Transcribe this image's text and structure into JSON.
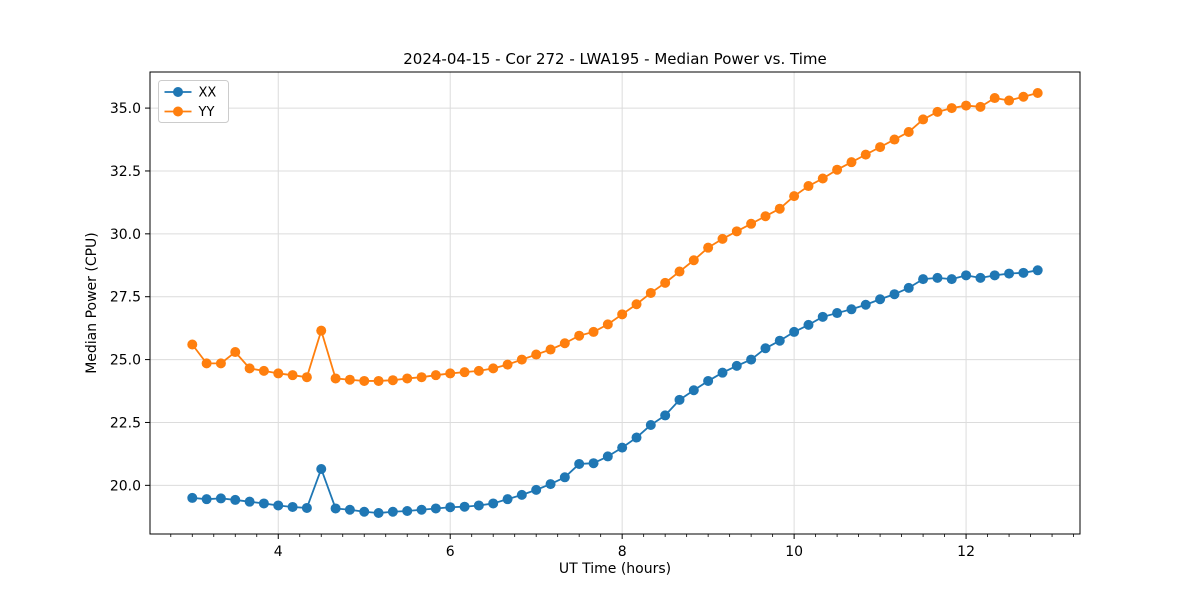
{
  "chart_data": {
    "type": "line",
    "title": "2024-04-15 - Cor 272 - LWA195 - Median Power vs. Time",
    "xlabel": "UT Time (hours)",
    "ylabel": "Median Power (CPU)",
    "xlim": [
      2.5083,
      13.325
    ],
    "ylim": [
      18.065,
      36.435
    ],
    "xticks": [
      4,
      6,
      8,
      10,
      12
    ],
    "xtick_labels": [
      "4",
      "6",
      "8",
      "10",
      "12"
    ],
    "yticks": [
      20.0,
      22.5,
      25.0,
      27.5,
      30.0,
      32.5,
      35.0
    ],
    "ytick_labels": [
      "20.0",
      "22.5",
      "25.0",
      "27.5",
      "30.0",
      "32.5",
      "35.0"
    ],
    "x_minor_step": 0.25,
    "grid": true,
    "legend_position": "upper left",
    "colors": {
      "xx_series": "#1f77b4",
      "yy_series": "#ff7f0e",
      "grid": "#dcdcdc",
      "spine": "#000000",
      "legend_border": "#cccccc"
    },
    "x": [
      3.0,
      3.167,
      3.333,
      3.5,
      3.667,
      3.833,
      4.0,
      4.167,
      4.333,
      4.5,
      4.667,
      4.833,
      5.0,
      5.167,
      5.333,
      5.5,
      5.667,
      5.833,
      6.0,
      6.167,
      6.333,
      6.5,
      6.667,
      6.833,
      7.0,
      7.167,
      7.333,
      7.5,
      7.667,
      7.833,
      8.0,
      8.167,
      8.333,
      8.5,
      8.667,
      8.833,
      9.0,
      9.167,
      9.333,
      9.5,
      9.667,
      9.833,
      10.0,
      10.167,
      10.333,
      10.5,
      10.667,
      10.833,
      11.0,
      11.167,
      11.333,
      11.5,
      11.667,
      11.833,
      12.0,
      12.167,
      12.333,
      12.5,
      12.667,
      12.833
    ],
    "series": [
      {
        "name": "XX",
        "color": "#1f77b4",
        "values": [
          19.5,
          19.45,
          19.48,
          19.42,
          19.35,
          19.28,
          19.2,
          19.14,
          19.1,
          20.65,
          19.08,
          19.03,
          18.95,
          18.9,
          18.95,
          18.98,
          19.03,
          19.08,
          19.13,
          19.15,
          19.2,
          19.28,
          19.45,
          19.62,
          19.82,
          20.05,
          20.32,
          20.85,
          20.88,
          21.15,
          21.5,
          21.9,
          22.4,
          22.78,
          23.4,
          23.78,
          24.15,
          24.48,
          24.75,
          25.0,
          25.45,
          25.75,
          26.1,
          26.38,
          26.7,
          26.85,
          27.0,
          27.18,
          27.4,
          27.6,
          27.85,
          28.2,
          28.25,
          28.2,
          28.35,
          28.25,
          28.35,
          28.42,
          28.45,
          28.55
        ]
      },
      {
        "name": "YY",
        "color": "#ff7f0e",
        "values": [
          25.6,
          24.85,
          24.85,
          25.3,
          24.65,
          24.55,
          24.45,
          24.38,
          24.3,
          26.15,
          24.25,
          24.2,
          24.15,
          24.15,
          24.18,
          24.25,
          24.3,
          24.38,
          24.45,
          24.5,
          24.55,
          24.65,
          24.8,
          25.0,
          25.2,
          25.4,
          25.65,
          25.95,
          26.1,
          26.4,
          26.8,
          27.2,
          27.65,
          28.05,
          28.5,
          28.95,
          29.45,
          29.8,
          30.1,
          30.4,
          30.7,
          31.0,
          31.5,
          31.9,
          32.2,
          32.55,
          32.85,
          33.15,
          33.45,
          33.75,
          34.05,
          34.55,
          34.85,
          35.0,
          35.1,
          35.05,
          35.4,
          35.3,
          35.45,
          35.6
        ]
      }
    ]
  }
}
